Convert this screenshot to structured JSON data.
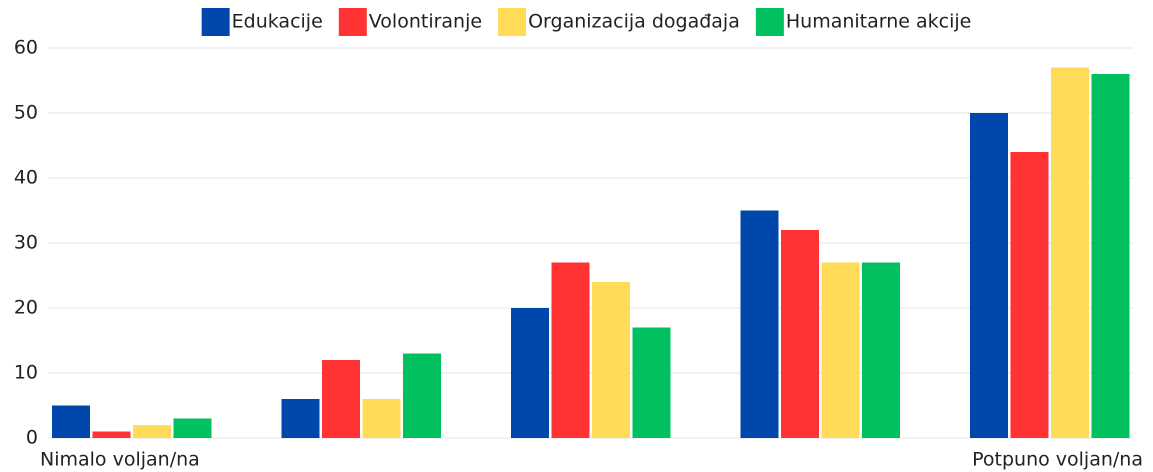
{
  "chart_data": {
    "type": "bar",
    "categories": [
      "Nimalo voljan/na",
      null,
      null,
      null,
      "Potpuno voljan/na"
    ],
    "series": [
      {
        "name": "Edukacije",
        "color": "#0047ab",
        "values": [
          5,
          6,
          20,
          35,
          50
        ]
      },
      {
        "name": "Volontiranje",
        "color": "#ff3333",
        "values": [
          1,
          12,
          27,
          32,
          44
        ]
      },
      {
        "name": "Organizacija događaja",
        "color": "#ffdb58",
        "values": [
          2,
          6,
          24,
          27,
          57
        ]
      },
      {
        "name": "Humanitarne akcije",
        "color": "#00c060",
        "values": [
          3,
          13,
          17,
          27,
          56
        ]
      }
    ],
    "ylim": [
      0,
      60
    ],
    "yticks": [
      0,
      10,
      20,
      30,
      40,
      50,
      60
    ],
    "grid": true,
    "legend": "top"
  }
}
